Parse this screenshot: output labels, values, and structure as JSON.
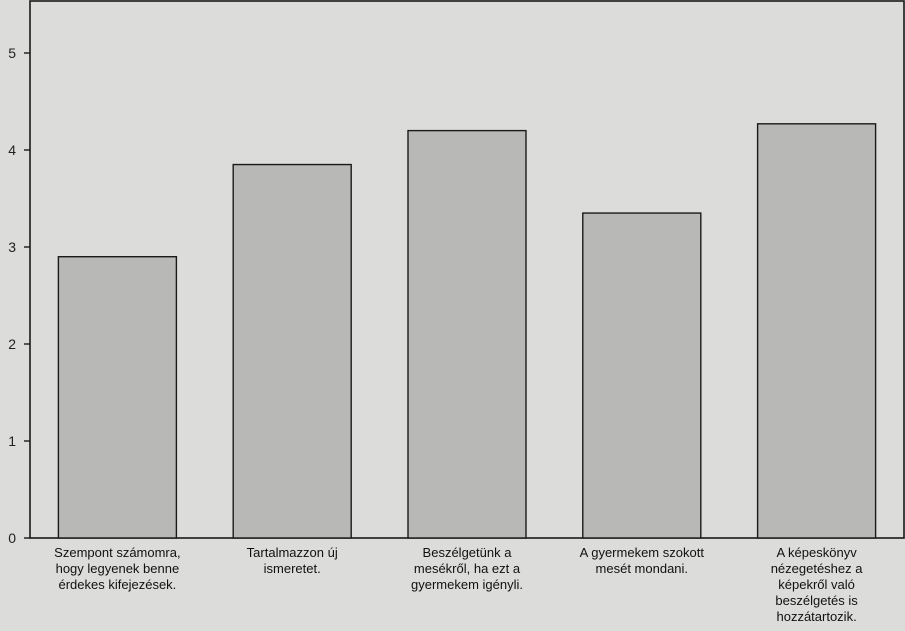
{
  "chart_data": {
    "type": "bar",
    "categories": [
      [
        "Szempont számomra,",
        "hogy legyenek benne",
        "érdekes kifejezések."
      ],
      [
        "Tartalmazzon új",
        "ismeretet."
      ],
      [
        "Beszélgetünk a",
        "mesékről, ha ezt a",
        "gyermekem igényli."
      ],
      [
        "A gyermekem szokott",
        "mesét mondani."
      ],
      [
        "A képeskönyv",
        "nézegetéshez a",
        "képekről való",
        "beszélgetés is",
        "hozzátartozik."
      ]
    ],
    "values": [
      2.9,
      3.85,
      4.2,
      3.35,
      4.27
    ],
    "ylim": [
      0,
      5.5
    ],
    "yticks": [
      "0",
      "1",
      "2",
      "3",
      "4",
      "5"
    ],
    "title": "",
    "xlabel": "",
    "ylabel": "",
    "grid": false,
    "colors": {
      "bar_fill": "#b8b8b6",
      "bar_stroke": "#1a1a1a",
      "background": "#dcdcda"
    }
  }
}
